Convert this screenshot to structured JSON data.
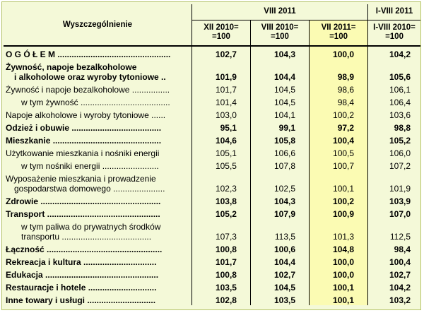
{
  "header": {
    "col_name": "Wyszczególnienie",
    "group1": "VIII 2011",
    "group2": "I-VIII 2011",
    "sub": [
      "XII 2010=\n=100",
      "VIII 2010=\n=100",
      "VII 2011=\n=100",
      "I-VIII 2010=\n=100"
    ],
    "sub_lines": [
      [
        "XII 2010=",
        "=100"
      ],
      [
        "VIII 2010=",
        "=100"
      ],
      [
        "VII 2011=",
        "=100"
      ],
      [
        "I-VIII 2010=",
        "=100"
      ]
    ]
  },
  "rows": [
    {
      "lines": [
        "O G Ó Ł E M ................................................"
      ],
      "v": [
        "102,7",
        "104,3",
        "100,0",
        "104,2"
      ],
      "bold": true,
      "indent": 0
    },
    {
      "lines": [
        "Żywność, napoje bezalkoholowe",
        "i alkoholowe oraz wyroby tytoniowe .."
      ],
      "v": [
        "101,9",
        "104,4",
        "98,9",
        "105,6"
      ],
      "bold": true,
      "indent": 0
    },
    {
      "lines": [
        "Żywność i napoje bezalkoholowe ................"
      ],
      "v": [
        "101,7",
        "104,5",
        "98,6",
        "106,1"
      ],
      "bold": false,
      "indent": 0
    },
    {
      "lines": [
        "w tym żywność ......................................"
      ],
      "v": [
        "101,4",
        "104,5",
        "98,4",
        "106,4"
      ],
      "bold": false,
      "indent": 1
    },
    {
      "lines": [
        "Napoje alkoholowe i wyroby tytoniowe ......"
      ],
      "v": [
        "103,0",
        "104,1",
        "100,2",
        "103,6"
      ],
      "bold": false,
      "indent": 0
    },
    {
      "lines": [
        "Odzież i obuwie ......................................"
      ],
      "v": [
        "95,1",
        "99,1",
        "97,2",
        "98,8"
      ],
      "bold": true,
      "indent": 0
    },
    {
      "lines": [
        "Mieszkanie .............................................."
      ],
      "v": [
        "104,6",
        "105,8",
        "100,4",
        "105,2"
      ],
      "bold": true,
      "indent": 0
    },
    {
      "lines": [
        "Użytkowanie mieszkania i nośniki energii"
      ],
      "v": [
        "105,1",
        "106,6",
        "100,5",
        "106,0"
      ],
      "bold": false,
      "indent": 0
    },
    {
      "lines": [
        "w tym nośniki energii ........................"
      ],
      "v": [
        "105,5",
        "107,8",
        "100,7",
        "107,2"
      ],
      "bold": false,
      "indent": 1
    },
    {
      "lines": [
        "Wyposażenie mieszkania i prowadzenie",
        "gospodarstwa domowego ......................"
      ],
      "v": [
        "102,3",
        "102,5",
        "100,1",
        "101,9"
      ],
      "bold": false,
      "indent": 0
    },
    {
      "lines": [
        "Zdrowie ..................................................."
      ],
      "v": [
        "103,8",
        "104,3",
        "100,2",
        "103,9"
      ],
      "bold": true,
      "indent": 0
    },
    {
      "lines": [
        "Transport ................................................"
      ],
      "v": [
        "105,2",
        "107,9",
        "100,9",
        "107,0"
      ],
      "bold": true,
      "indent": 0
    },
    {
      "lines": [
        "w tym paliwa do prywatnych środków",
        "transportu ......................................"
      ],
      "v": [
        "107,3",
        "113,5",
        "101,3",
        "112,5"
      ],
      "bold": false,
      "indent": 1
    },
    {
      "lines": [
        "Łączność ................................................."
      ],
      "v": [
        "100,8",
        "100,6",
        "104,8",
        "98,4"
      ],
      "bold": true,
      "indent": 0
    },
    {
      "lines": [
        "Rekreacja i kultura ..............................."
      ],
      "v": [
        "101,7",
        "104,4",
        "100,0",
        "100,4"
      ],
      "bold": true,
      "indent": 0
    },
    {
      "lines": [
        "Edukacja ................................................"
      ],
      "v": [
        "100,8",
        "102,7",
        "100,0",
        "102,7"
      ],
      "bold": true,
      "indent": 0
    },
    {
      "lines": [
        "Restauracje i hotele ............................."
      ],
      "v": [
        "103,5",
        "104,5",
        "100,1",
        "104,2"
      ],
      "bold": true,
      "indent": 0
    },
    {
      "lines": [
        "Inne towary i usługi ............................."
      ],
      "v": [
        "102,8",
        "103,5",
        "100,1",
        "103,2"
      ],
      "bold": true,
      "indent": 0
    }
  ],
  "colors": {
    "background": "#f4f9d8",
    "highlight": "#fbfbb3",
    "border": "#000000"
  }
}
